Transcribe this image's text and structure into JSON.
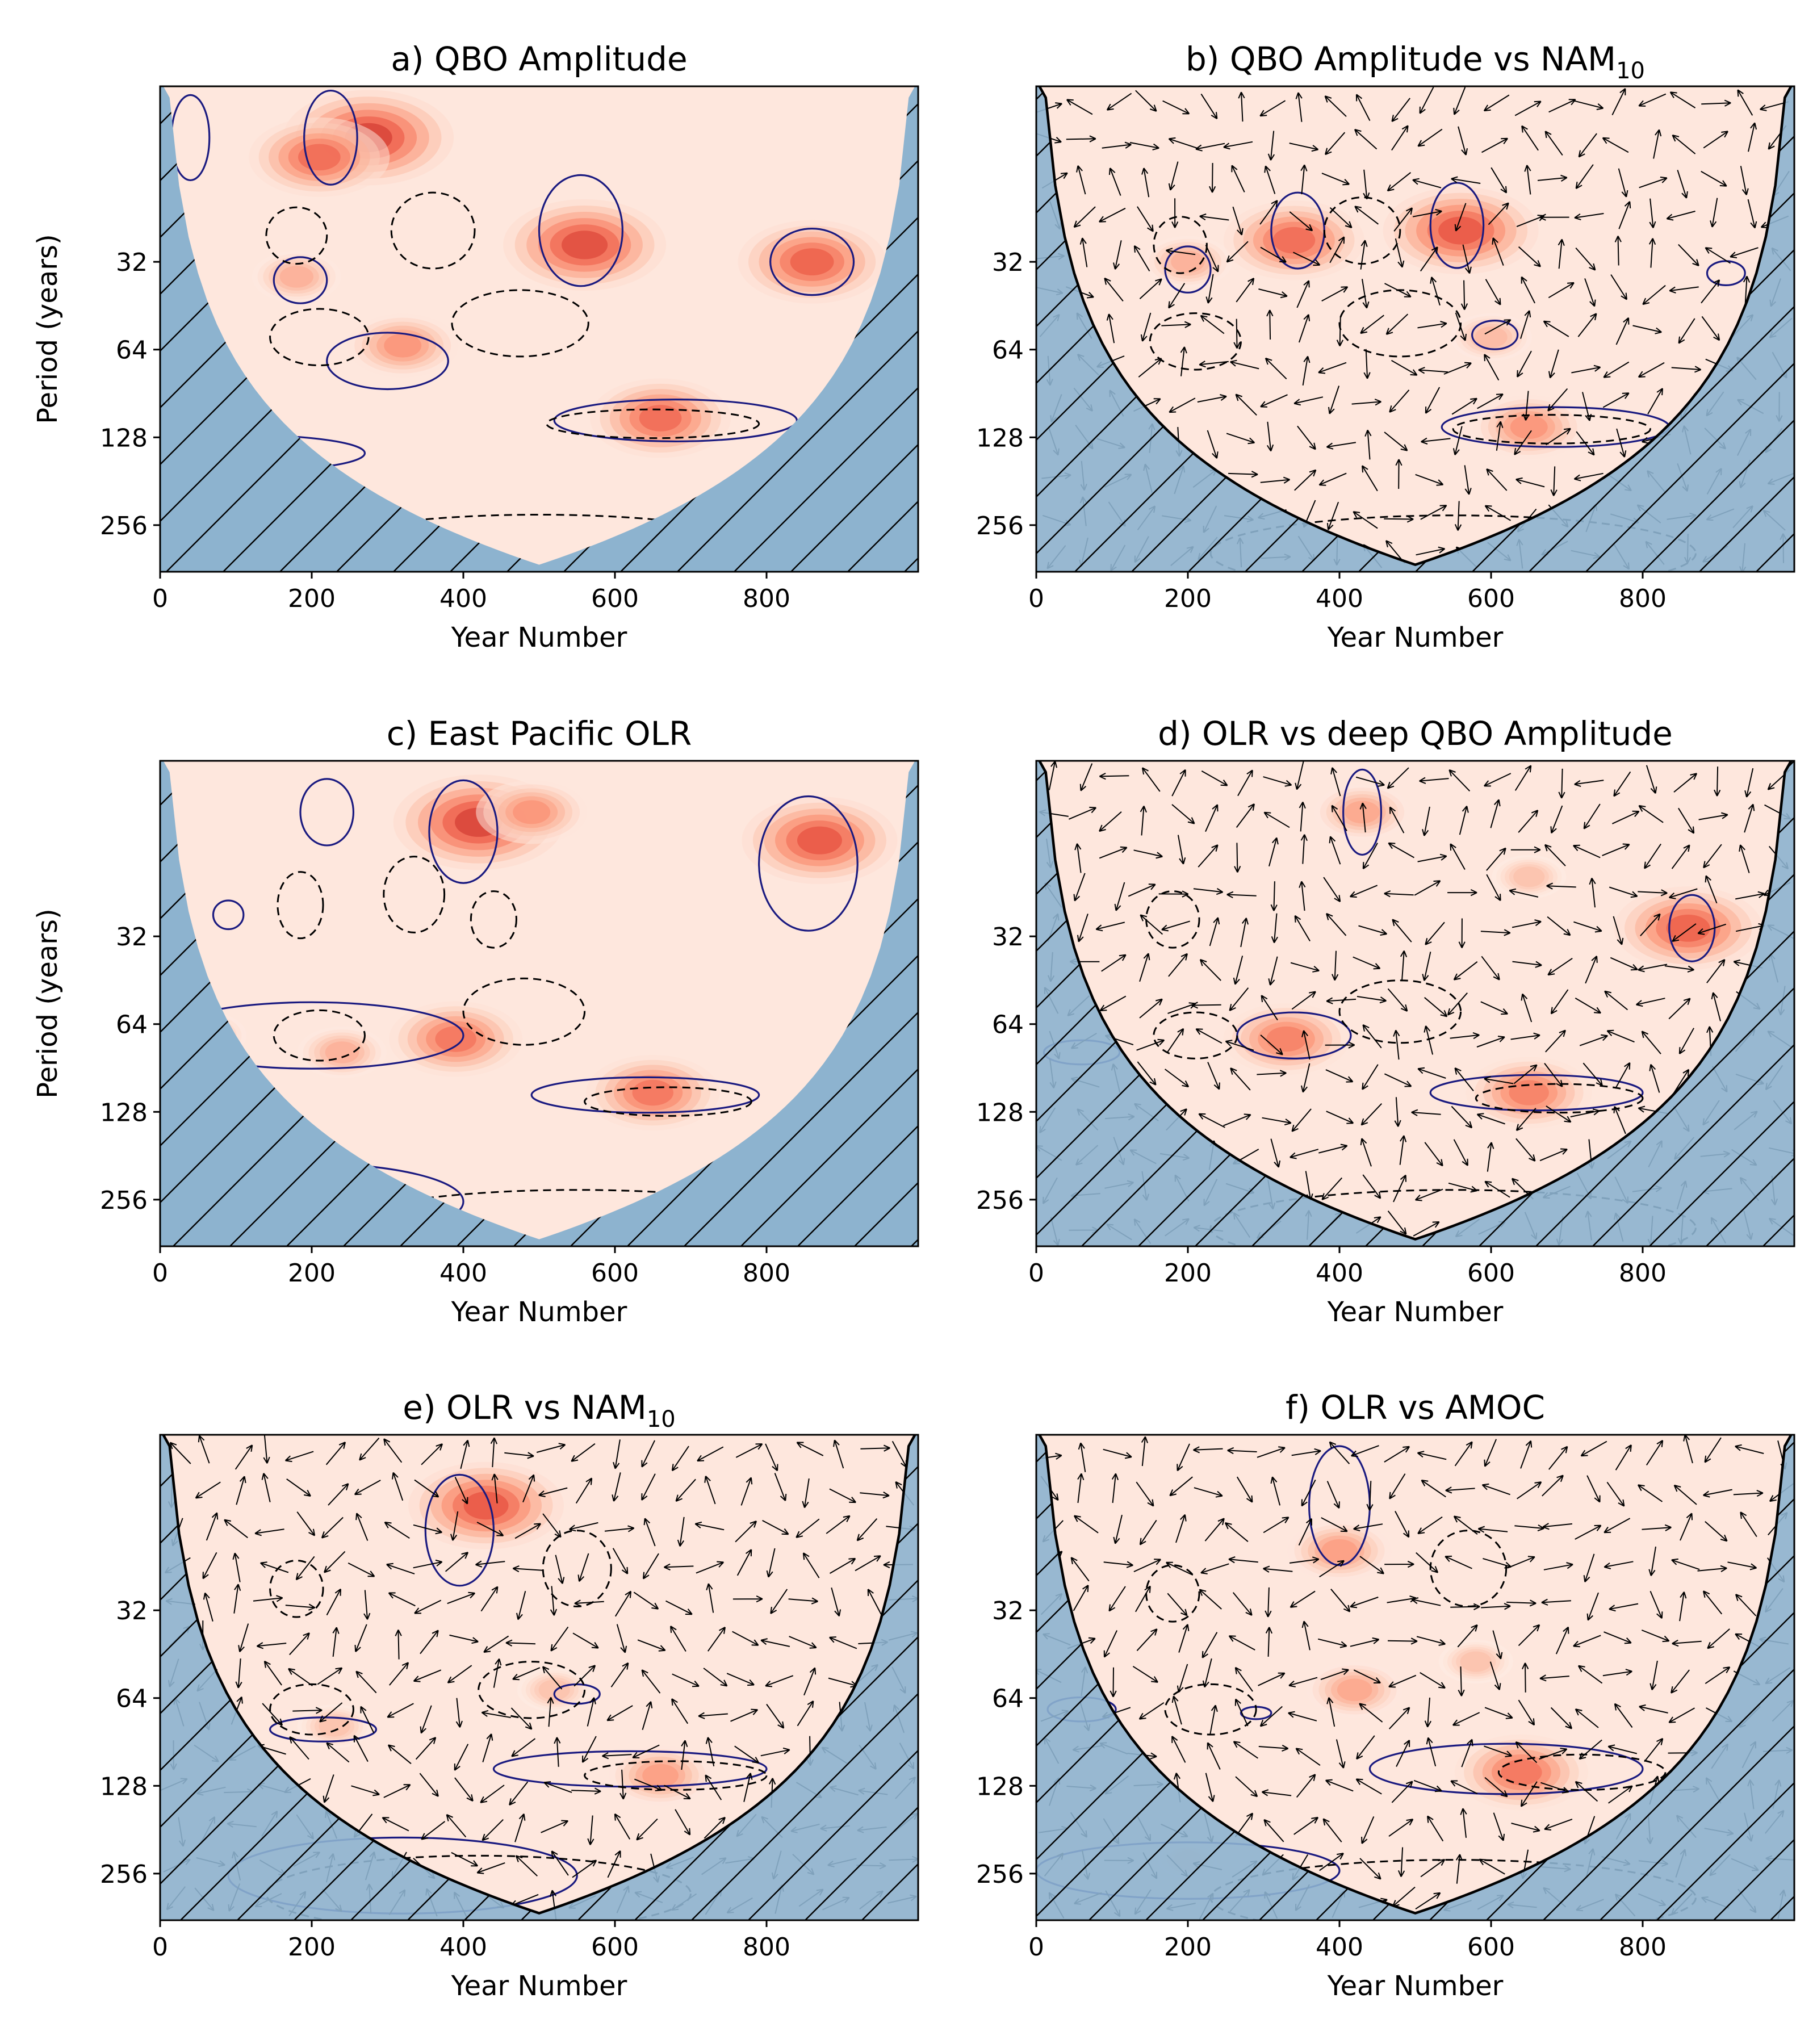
{
  "figure": {
    "x_axis_label": "Year Number",
    "y_axis_label": "Period (years)"
  },
  "chart_data": [
    {
      "id": "a",
      "title": "a) QBO Amplitude",
      "title_base": "a) QBO Amplitude",
      "title_sub": "",
      "type": "heatmap",
      "phase_arrows": false,
      "coi_style": "filled",
      "xlim": [
        0,
        1000
      ],
      "xticks": [
        0,
        200,
        400,
        600,
        800
      ],
      "ylim_period": [
        8,
        370
      ],
      "yscale": "log2",
      "yticks": [
        32,
        64,
        128,
        256
      ],
      "show_ylabel": true,
      "hotspots": [
        {
          "year": 275,
          "period": 12,
          "power": 1.0
        },
        {
          "year": 560,
          "period": 28,
          "power": 0.95
        },
        {
          "year": 860,
          "period": 32,
          "power": 0.85
        },
        {
          "year": 210,
          "period": 14,
          "power": 0.8
        },
        {
          "year": 660,
          "period": 110,
          "power": 0.8
        },
        {
          "year": 320,
          "period": 62,
          "power": 0.6
        },
        {
          "year": 180,
          "period": 36,
          "power": 0.45
        }
      ],
      "significant_regions": [
        {
          "year_center": 225,
          "period_center": 12,
          "year_halfwidth": 35,
          "period_factor": 1.45
        },
        {
          "year_center": 555,
          "period_center": 25,
          "year_halfwidth": 55,
          "period_factor": 1.55
        },
        {
          "year_center": 860,
          "period_center": 32,
          "year_halfwidth": 55,
          "period_factor": 1.3
        },
        {
          "year_center": 185,
          "period_center": 37,
          "year_halfwidth": 35,
          "period_factor": 1.2
        },
        {
          "year_center": 300,
          "period_center": 70,
          "year_halfwidth": 80,
          "period_factor": 1.25
        },
        {
          "year_center": 680,
          "period_center": 112,
          "year_halfwidth": 160,
          "period_factor": 1.18
        },
        {
          "year_center": 120,
          "period_center": 145,
          "year_halfwidth": 150,
          "period_factor": 1.15
        },
        {
          "year_center": 40,
          "period_center": 12,
          "year_halfwidth": 25,
          "period_factor": 1.4
        }
      ],
      "dashed_regions": [
        {
          "year_center": 180,
          "period_center": 26,
          "year_halfwidth": 40,
          "period_factor": 1.25
        },
        {
          "year_center": 210,
          "period_center": 58,
          "year_halfwidth": 65,
          "period_factor": 1.25
        },
        {
          "year_center": 360,
          "period_center": 25,
          "year_halfwidth": 55,
          "period_factor": 1.35
        },
        {
          "year_center": 475,
          "period_center": 52,
          "year_halfwidth": 90,
          "period_factor": 1.3
        },
        {
          "year_center": 650,
          "period_center": 115,
          "year_halfwidth": 140,
          "period_factor": 1.12
        },
        {
          "year_center": 500,
          "period_center": 330,
          "year_halfwidth": 330,
          "period_factor": 1.4
        }
      ]
    },
    {
      "id": "b",
      "title": "b) QBO Amplitude vs NAM10",
      "title_base": "b) QBO Amplitude vs NAM",
      "title_sub": "10",
      "type": "heatmap",
      "phase_arrows": true,
      "coi_style": "outlined",
      "xlim": [
        0,
        1000
      ],
      "xticks": [
        0,
        200,
        400,
        600,
        800
      ],
      "ylim_period": [
        8,
        370
      ],
      "yscale": "log2",
      "yticks": [
        32,
        64,
        128,
        256
      ],
      "show_ylabel": false,
      "hotspots": [
        {
          "year": 340,
          "period": 27,
          "power": 0.8
        },
        {
          "year": 560,
          "period": 25,
          "power": 0.9
        },
        {
          "year": 650,
          "period": 118,
          "power": 0.6
        },
        {
          "year": 200,
          "period": 32,
          "power": 0.45
        },
        {
          "year": 600,
          "period": 58,
          "power": 0.4
        }
      ],
      "significant_regions": [
        {
          "year_center": 345,
          "period_center": 25,
          "year_halfwidth": 35,
          "period_factor": 1.35
        },
        {
          "year_center": 555,
          "period_center": 24,
          "year_halfwidth": 35,
          "period_factor": 1.4
        },
        {
          "year_center": 200,
          "period_center": 34,
          "year_halfwidth": 30,
          "period_factor": 1.2
        },
        {
          "year_center": 605,
          "period_center": 57,
          "year_halfwidth": 30,
          "period_factor": 1.12
        },
        {
          "year_center": 685,
          "period_center": 118,
          "year_halfwidth": 150,
          "period_factor": 1.17
        },
        {
          "year_center": 910,
          "period_center": 35,
          "year_halfwidth": 25,
          "period_factor": 1.1
        }
      ],
      "dashed_regions": [
        {
          "year_center": 190,
          "period_center": 28,
          "year_halfwidth": 35,
          "period_factor": 1.25
        },
        {
          "year_center": 210,
          "period_center": 60,
          "year_halfwidth": 60,
          "period_factor": 1.25
        },
        {
          "year_center": 430,
          "period_center": 25,
          "year_halfwidth": 50,
          "period_factor": 1.3
        },
        {
          "year_center": 480,
          "period_center": 52,
          "year_halfwidth": 80,
          "period_factor": 1.3
        },
        {
          "year_center": 680,
          "period_center": 120,
          "year_halfwidth": 130,
          "period_factor": 1.12
        },
        {
          "year_center": 550,
          "period_center": 320,
          "year_halfwidth": 320,
          "period_factor": 1.35
        }
      ]
    },
    {
      "id": "c",
      "title": "c) East Pacific OLR",
      "title_base": "c) East Pacific OLR",
      "title_sub": "",
      "type": "heatmap",
      "phase_arrows": false,
      "coi_style": "filled",
      "xlim": [
        0,
        1000
      ],
      "xticks": [
        0,
        200,
        400,
        600,
        800
      ],
      "ylim_period": [
        8,
        370
      ],
      "yscale": "log2",
      "yticks": [
        32,
        64,
        128,
        256
      ],
      "show_ylabel": true,
      "hotspots": [
        {
          "year": 420,
          "period": 13,
          "power": 1.0
        },
        {
          "year": 870,
          "period": 15,
          "power": 0.9
        },
        {
          "year": 390,
          "period": 72,
          "power": 0.75
        },
        {
          "year": 650,
          "period": 110,
          "power": 0.75
        },
        {
          "year": 490,
          "period": 12,
          "power": 0.6
        },
        {
          "year": 240,
          "period": 80,
          "power": 0.45
        },
        {
          "year": 60,
          "period": 70,
          "power": 0.4
        }
      ],
      "significant_regions": [
        {
          "year_center": 400,
          "period_center": 14,
          "year_halfwidth": 45,
          "period_factor": 1.5
        },
        {
          "year_center": 855,
          "period_center": 18,
          "year_halfwidth": 65,
          "period_factor": 1.7
        },
        {
          "year_center": 220,
          "period_center": 12,
          "year_halfwidth": 35,
          "period_factor": 1.3
        },
        {
          "year_center": 90,
          "period_center": 27,
          "year_halfwidth": 20,
          "period_factor": 1.12
        },
        {
          "year_center": 200,
          "period_center": 70,
          "year_halfwidth": 200,
          "period_factor": 1.3
        },
        {
          "year_center": 640,
          "period_center": 112,
          "year_halfwidth": 150,
          "period_factor": 1.15
        },
        {
          "year_center": 200,
          "period_center": 260,
          "year_halfwidth": 200,
          "period_factor": 1.35
        }
      ],
      "dashed_regions": [
        {
          "year_center": 185,
          "period_center": 25,
          "year_halfwidth": 30,
          "period_factor": 1.3
        },
        {
          "year_center": 335,
          "period_center": 23,
          "year_halfwidth": 40,
          "period_factor": 1.35
        },
        {
          "year_center": 440,
          "period_center": 28,
          "year_halfwidth": 30,
          "period_factor": 1.25
        },
        {
          "year_center": 210,
          "period_center": 70,
          "year_halfwidth": 60,
          "period_factor": 1.22
        },
        {
          "year_center": 480,
          "period_center": 58,
          "year_halfwidth": 80,
          "period_factor": 1.3
        },
        {
          "year_center": 670,
          "period_center": 118,
          "year_halfwidth": 110,
          "period_factor": 1.12
        },
        {
          "year_center": 550,
          "period_center": 320,
          "year_halfwidth": 320,
          "period_factor": 1.35
        }
      ]
    },
    {
      "id": "d",
      "title": "d) OLR vs deep QBO Amplitude",
      "title_base": "d) OLR vs deep QBO Amplitude",
      "title_sub": "",
      "type": "heatmap",
      "phase_arrows": true,
      "coi_style": "outlined",
      "xlim": [
        0,
        1000
      ],
      "xticks": [
        0,
        200,
        400,
        600,
        800
      ],
      "ylim_period": [
        8,
        370
      ],
      "yscale": "log2",
      "yticks": [
        32,
        64,
        128,
        256
      ],
      "show_ylabel": false,
      "hotspots": [
        {
          "year": 860,
          "period": 30,
          "power": 0.85
        },
        {
          "year": 330,
          "period": 72,
          "power": 0.7
        },
        {
          "year": 650,
          "period": 110,
          "power": 0.7
        },
        {
          "year": 430,
          "period": 12,
          "power": 0.5
        },
        {
          "year": 650,
          "period": 20,
          "power": 0.35
        }
      ],
      "significant_regions": [
        {
          "year_center": 865,
          "period_center": 30,
          "year_halfwidth": 30,
          "period_factor": 1.3
        },
        {
          "year_center": 340,
          "period_center": 70,
          "year_halfwidth": 75,
          "period_factor": 1.2
        },
        {
          "year_center": 660,
          "period_center": 110,
          "year_halfwidth": 140,
          "period_factor": 1.15
        },
        {
          "year_center": 60,
          "period_center": 80,
          "year_halfwidth": 50,
          "period_factor": 1.1
        },
        {
          "year_center": 430,
          "period_center": 12,
          "year_halfwidth": 25,
          "period_factor": 1.4
        }
      ],
      "dashed_regions": [
        {
          "year_center": 180,
          "period_center": 28,
          "year_halfwidth": 35,
          "period_factor": 1.25
        },
        {
          "year_center": 210,
          "period_center": 70,
          "year_halfwidth": 55,
          "period_factor": 1.2
        },
        {
          "year_center": 480,
          "period_center": 58,
          "year_halfwidth": 80,
          "period_factor": 1.28
        },
        {
          "year_center": 690,
          "period_center": 115,
          "year_halfwidth": 110,
          "period_factor": 1.12
        },
        {
          "year_center": 550,
          "period_center": 320,
          "year_halfwidth": 320,
          "period_factor": 1.35
        }
      ]
    },
    {
      "id": "e",
      "title": "e) OLR vs NAM10",
      "title_base": "e) OLR vs NAM",
      "title_sub": "10",
      "type": "heatmap",
      "phase_arrows": true,
      "coi_style": "outlined",
      "xlim": [
        0,
        1000
      ],
      "xticks": [
        0,
        200,
        400,
        600,
        800
      ],
      "ylim_period": [
        8,
        370
      ],
      "yscale": "log2",
      "yticks": [
        32,
        64,
        128,
        256
      ],
      "show_ylabel": false,
      "hotspots": [
        {
          "year": 430,
          "period": 14,
          "power": 0.9
        },
        {
          "year": 660,
          "period": 118,
          "power": 0.55
        },
        {
          "year": 230,
          "period": 80,
          "power": 0.35
        },
        {
          "year": 520,
          "period": 60,
          "power": 0.35
        }
      ],
      "significant_regions": [
        {
          "year_center": 395,
          "period_center": 17,
          "year_halfwidth": 45,
          "period_factor": 1.55
        },
        {
          "year_center": 215,
          "period_center": 82,
          "year_halfwidth": 70,
          "period_factor": 1.1
        },
        {
          "year_center": 550,
          "period_center": 62,
          "year_halfwidth": 30,
          "period_factor": 1.08
        },
        {
          "year_center": 620,
          "period_center": 112,
          "year_halfwidth": 180,
          "period_factor": 1.15
        },
        {
          "year_center": 320,
          "period_center": 260,
          "year_halfwidth": 230,
          "period_factor": 1.35
        }
      ],
      "dashed_regions": [
        {
          "year_center": 180,
          "period_center": 27,
          "year_halfwidth": 35,
          "period_factor": 1.25
        },
        {
          "year_center": 200,
          "period_center": 70,
          "year_halfwidth": 55,
          "period_factor": 1.22
        },
        {
          "year_center": 550,
          "period_center": 23,
          "year_halfwidth": 45,
          "period_factor": 1.35
        },
        {
          "year_center": 490,
          "period_center": 60,
          "year_halfwidth": 70,
          "period_factor": 1.25
        },
        {
          "year_center": 680,
          "period_center": 118,
          "year_halfwidth": 120,
          "period_factor": 1.12
        },
        {
          "year_center": 420,
          "period_center": 300,
          "year_halfwidth": 280,
          "period_factor": 1.35
        }
      ]
    },
    {
      "id": "f",
      "title": "f) OLR vs AMOC",
      "title_base": "f) OLR vs AMOC",
      "title_sub": "",
      "type": "heatmap",
      "phase_arrows": true,
      "coi_style": "outlined",
      "xlim": [
        0,
        1000
      ],
      "xticks": [
        0,
        200,
        400,
        600,
        800
      ],
      "ylim_period": [
        8,
        370
      ],
      "yscale": "log2",
      "yticks": [
        32,
        64,
        128,
        256
      ],
      "show_ylabel": false,
      "hotspots": [
        {
          "year": 400,
          "period": 20,
          "power": 0.55
        },
        {
          "year": 640,
          "period": 115,
          "power": 0.75
        },
        {
          "year": 420,
          "period": 60,
          "power": 0.5
        },
        {
          "year": 580,
          "period": 48,
          "power": 0.35
        },
        {
          "year": 200,
          "period": 230,
          "power": 0.25
        }
      ],
      "significant_regions": [
        {
          "year_center": 400,
          "period_center": 14,
          "year_halfwidth": 40,
          "period_factor": 1.6
        },
        {
          "year_center": 620,
          "period_center": 112,
          "year_halfwidth": 180,
          "period_factor": 1.22
        },
        {
          "year_center": 60,
          "period_center": 70,
          "year_halfwidth": 45,
          "period_factor": 1.1
        },
        {
          "year_center": 290,
          "period_center": 72,
          "year_halfwidth": 20,
          "period_factor": 1.05
        },
        {
          "year_center": 200,
          "period_center": 250,
          "year_halfwidth": 200,
          "period_factor": 1.25
        }
      ],
      "dashed_regions": [
        {
          "year_center": 180,
          "period_center": 28,
          "year_halfwidth": 35,
          "period_factor": 1.25
        },
        {
          "year_center": 230,
          "period_center": 70,
          "year_halfwidth": 60,
          "period_factor": 1.22
        },
        {
          "year_center": 570,
          "period_center": 23,
          "year_halfwidth": 50,
          "period_factor": 1.35
        },
        {
          "year_center": 720,
          "period_center": 115,
          "year_halfwidth": 110,
          "period_factor": 1.15
        },
        {
          "year_center": 550,
          "period_center": 310,
          "year_halfwidth": 320,
          "period_factor": 1.35
        }
      ]
    }
  ]
}
